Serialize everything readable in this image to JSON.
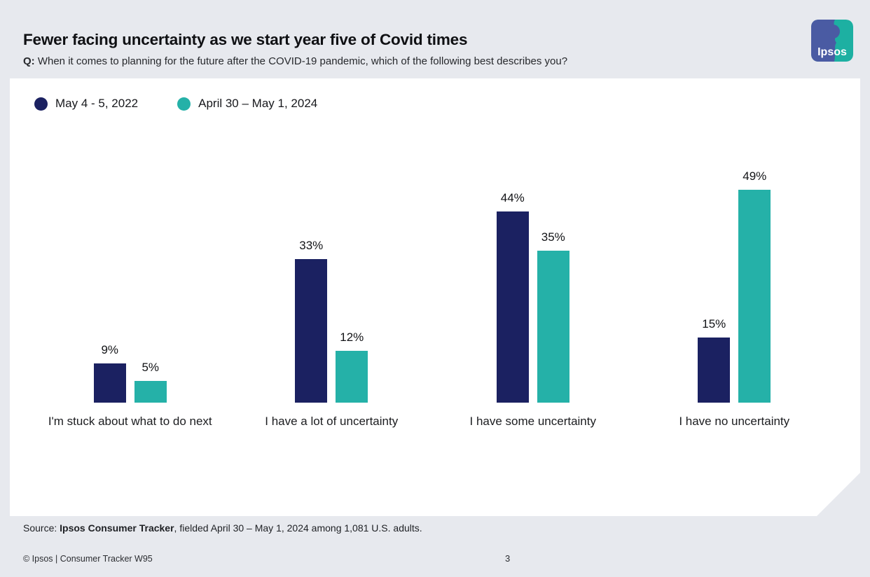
{
  "header": {
    "title": "Fewer facing uncertainty as we start year five of Covid times",
    "q_prefix": "Q:",
    "question": " When it comes to planning for the future after the COVID-19 pandemic, which of the following best describes you?"
  },
  "logo": {
    "text": "Ipsos",
    "blue": "#4a5ba3",
    "teal": "#1db0a2"
  },
  "chart_data": {
    "type": "bar",
    "title": "Fewer facing uncertainty as we start year five of Covid times",
    "categories": [
      "I'm stuck about what to do next",
      "I have a lot of uncertainty",
      "I have some uncertainty",
      "I have no uncertainty"
    ],
    "series": [
      {
        "name": "May 4 - 5, 2022",
        "color": "#1b2161",
        "values": [
          9,
          33,
          44,
          15
        ],
        "labels": [
          "9%",
          "33%",
          "44%",
          "15%"
        ]
      },
      {
        "name": "April 30 – May 1, 2024",
        "color": "#25b1a8",
        "values": [
          5,
          12,
          35,
          49
        ],
        "labels": [
          "5%",
          "12%",
          "35%",
          "49%"
        ]
      }
    ],
    "unit": "%",
    "ylim": [
      0,
      50
    ],
    "grid": false,
    "axes_visible": false,
    "value_labels": true,
    "legend_position": "top-left"
  },
  "source": {
    "prefix": "Source: ",
    "bold": "Ipsos Consumer Tracker",
    "rest": ", fielded April 30 – May 1, 2024 among 1,081 U.S. adults."
  },
  "footer": {
    "copyright": "© Ipsos | Consumer Tracker W95",
    "page_number": "3"
  }
}
